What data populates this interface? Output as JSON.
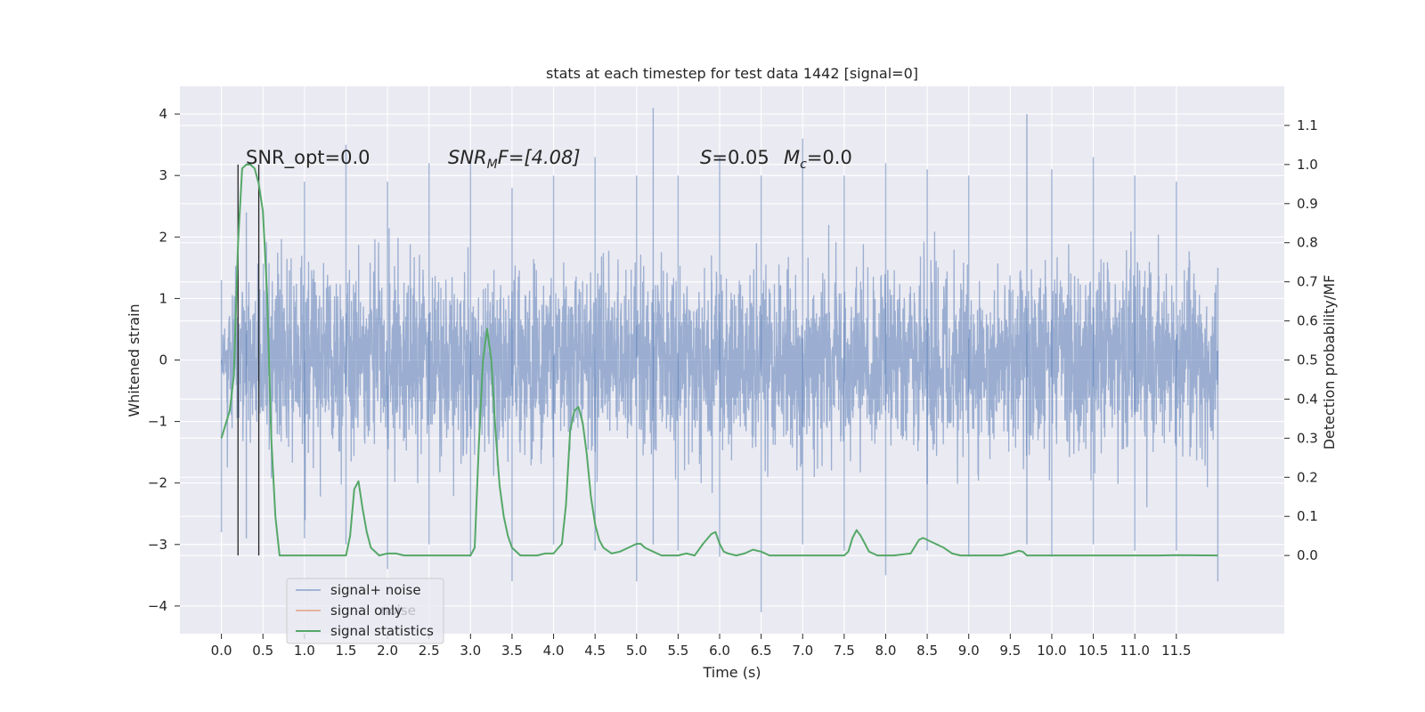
{
  "chart_data": {
    "type": "line",
    "title": "stats at each timestep for test data 1442 [signal=0]",
    "xlabel": "Time (s)",
    "ylabel": "Whitened strain",
    "y2label": "Detection probability/MF",
    "xlim": [
      -0.5,
      12.8
    ],
    "ylim": [
      -4.45,
      4.45
    ],
    "y2lim": [
      -0.2,
      1.2
    ],
    "xticks": [
      0.0,
      0.5,
      1.0,
      1.5,
      2.0,
      2.5,
      3.0,
      3.5,
      4.0,
      4.5,
      5.0,
      5.5,
      6.0,
      6.5,
      7.0,
      7.5,
      8.0,
      8.5,
      9.0,
      9.5,
      10.0,
      10.5,
      11.0,
      11.5
    ],
    "xtick_labels": [
      "0.0",
      "0.5",
      "1.0",
      "1.5",
      "2.0",
      "2.5",
      "3.0",
      "3.5",
      "4.0",
      "4.5",
      "5.0",
      "5.5",
      "6.0",
      "6.5",
      "7.0",
      "7.5",
      "8.0",
      "8.5",
      "9.0",
      "9.5",
      "10.0",
      "10.5",
      "11.0",
      "11.5"
    ],
    "yticks": [
      -4,
      -3,
      -2,
      -1,
      0,
      1,
      2,
      3,
      4
    ],
    "ytick_labels": [
      "−4",
      "−3",
      "−2",
      "−1",
      "0",
      "1",
      "2",
      "3",
      "4"
    ],
    "y2ticks": [
      0.0,
      0.1,
      0.2,
      0.3,
      0.4,
      0.5,
      0.6,
      0.7,
      0.8,
      0.9,
      1.0,
      1.1
    ],
    "y2tick_labels": [
      "0.0",
      "0.1",
      "0.2",
      "0.3",
      "0.4",
      "0.5",
      "0.6",
      "0.7",
      "0.8",
      "0.9",
      "1.0",
      "1.1"
    ],
    "grid": true,
    "legend_placement": "lower-left",
    "colors": {
      "background": "#eaeaf2",
      "grid": "#ffffff",
      "noise": "#4c72b0",
      "signal_only": "#dd8452",
      "statistics": "#55a868",
      "markers": "#262626"
    },
    "series": [
      {
        "name": "signal+ noise",
        "axis": "left",
        "duration": 12.0,
        "envelope": [
          {
            "x": 0.0,
            "upper": 1.3,
            "lower": -2.8
          },
          {
            "x": 0.3,
            "upper": 2.4,
            "lower": -2.9
          },
          {
            "x": 1.0,
            "upper": 2.9,
            "lower": -2.9
          },
          {
            "x": 1.5,
            "upper": 3.5,
            "lower": -3.0
          },
          {
            "x": 2.0,
            "upper": 2.9,
            "lower": -3.4
          },
          {
            "x": 2.5,
            "upper": 3.2,
            "lower": -3.0
          },
          {
            "x": 3.0,
            "upper": 3.3,
            "lower": -3.2
          },
          {
            "x": 3.5,
            "upper": 2.8,
            "lower": -3.6
          },
          {
            "x": 4.0,
            "upper": 3.0,
            "lower": -3.0
          },
          {
            "x": 4.5,
            "upper": 3.3,
            "lower": -3.1
          },
          {
            "x": 5.0,
            "upper": 3.0,
            "lower": -3.6
          },
          {
            "x": 5.2,
            "upper": 4.1,
            "lower": -3.0
          },
          {
            "x": 5.5,
            "upper": 3.0,
            "lower": -3.1
          },
          {
            "x": 6.0,
            "upper": 3.3,
            "lower": -3.2
          },
          {
            "x": 6.5,
            "upper": 3.0,
            "lower": -4.1
          },
          {
            "x": 7.0,
            "upper": 3.6,
            "lower": -3.0
          },
          {
            "x": 7.5,
            "upper": 3.0,
            "lower": -3.1
          },
          {
            "x": 8.0,
            "upper": 3.2,
            "lower": -3.5
          },
          {
            "x": 8.5,
            "upper": 3.1,
            "lower": -3.1
          },
          {
            "x": 9.0,
            "upper": 3.0,
            "lower": -3.2
          },
          {
            "x": 9.7,
            "upper": 4.0,
            "lower": -3.0
          },
          {
            "x": 10.0,
            "upper": 3.1,
            "lower": -3.2
          },
          {
            "x": 10.5,
            "upper": 3.3,
            "lower": -3.0
          },
          {
            "x": 11.0,
            "upper": 3.0,
            "lower": -3.1
          },
          {
            "x": 11.5,
            "upper": 2.9,
            "lower": -3.1
          },
          {
            "x": 12.0,
            "upper": 1.5,
            "lower": -3.6
          }
        ]
      },
      {
        "name": "signal only",
        "axis": "left",
        "points": []
      },
      {
        "name": "signal statistics",
        "axis": "right",
        "points": [
          [
            0.0,
            0.3
          ],
          [
            0.1,
            0.37
          ],
          [
            0.15,
            0.46
          ],
          [
            0.2,
            0.8
          ],
          [
            0.25,
            0.99
          ],
          [
            0.3,
            1.0
          ],
          [
            0.35,
            1.0
          ],
          [
            0.4,
            0.99
          ],
          [
            0.45,
            0.95
          ],
          [
            0.5,
            0.88
          ],
          [
            0.55,
            0.67
          ],
          [
            0.6,
            0.3
          ],
          [
            0.65,
            0.1
          ],
          [
            0.7,
            0.0
          ],
          [
            0.8,
            0.0
          ],
          [
            1.0,
            0.0
          ],
          [
            1.2,
            0.0
          ],
          [
            1.35,
            0.0
          ],
          [
            1.5,
            0.0
          ],
          [
            1.55,
            0.05
          ],
          [
            1.6,
            0.17
          ],
          [
            1.65,
            0.19
          ],
          [
            1.7,
            0.12
          ],
          [
            1.75,
            0.06
          ],
          [
            1.8,
            0.02
          ],
          [
            1.9,
            0.0
          ],
          [
            2.0,
            0.005
          ],
          [
            2.1,
            0.005
          ],
          [
            2.2,
            0.0
          ],
          [
            2.5,
            0.0
          ],
          [
            2.8,
            0.0
          ],
          [
            3.0,
            0.0
          ],
          [
            3.05,
            0.02
          ],
          [
            3.1,
            0.28
          ],
          [
            3.15,
            0.5
          ],
          [
            3.2,
            0.58
          ],
          [
            3.25,
            0.5
          ],
          [
            3.3,
            0.32
          ],
          [
            3.35,
            0.18
          ],
          [
            3.4,
            0.1
          ],
          [
            3.45,
            0.05
          ],
          [
            3.5,
            0.02
          ],
          [
            3.6,
            0.0
          ],
          [
            3.8,
            0.0
          ],
          [
            3.9,
            0.005
          ],
          [
            4.0,
            0.005
          ],
          [
            4.1,
            0.03
          ],
          [
            4.15,
            0.13
          ],
          [
            4.2,
            0.32
          ],
          [
            4.25,
            0.37
          ],
          [
            4.3,
            0.38
          ],
          [
            4.35,
            0.34
          ],
          [
            4.4,
            0.26
          ],
          [
            4.45,
            0.15
          ],
          [
            4.5,
            0.08
          ],
          [
            4.55,
            0.04
          ],
          [
            4.6,
            0.02
          ],
          [
            4.7,
            0.005
          ],
          [
            4.8,
            0.01
          ],
          [
            4.9,
            0.02
          ],
          [
            5.0,
            0.03
          ],
          [
            5.05,
            0.03
          ],
          [
            5.1,
            0.02
          ],
          [
            5.2,
            0.01
          ],
          [
            5.3,
            0.0
          ],
          [
            5.5,
            0.0
          ],
          [
            5.6,
            0.005
          ],
          [
            5.7,
            0.0
          ],
          [
            5.8,
            0.03
          ],
          [
            5.9,
            0.055
          ],
          [
            5.95,
            0.06
          ],
          [
            6.0,
            0.03
          ],
          [
            6.05,
            0.01
          ],
          [
            6.1,
            0.005
          ],
          [
            6.2,
            0.0
          ],
          [
            6.3,
            0.005
          ],
          [
            6.4,
            0.015
          ],
          [
            6.5,
            0.01
          ],
          [
            6.6,
            0.0
          ],
          [
            6.8,
            0.0
          ],
          [
            7.0,
            0.0
          ],
          [
            7.2,
            0.0
          ],
          [
            7.5,
            0.0
          ],
          [
            7.55,
            0.01
          ],
          [
            7.6,
            0.045
          ],
          [
            7.65,
            0.065
          ],
          [
            7.7,
            0.05
          ],
          [
            7.75,
            0.03
          ],
          [
            7.8,
            0.01
          ],
          [
            7.9,
            0.0
          ],
          [
            8.1,
            0.0
          ],
          [
            8.3,
            0.005
          ],
          [
            8.4,
            0.04
          ],
          [
            8.45,
            0.045
          ],
          [
            8.5,
            0.04
          ],
          [
            8.6,
            0.03
          ],
          [
            8.7,
            0.02
          ],
          [
            8.8,
            0.005
          ],
          [
            8.9,
            0.0
          ],
          [
            9.1,
            0.0
          ],
          [
            9.3,
            0.0
          ],
          [
            9.4,
            0.0
          ],
          [
            9.5,
            0.005
          ],
          [
            9.6,
            0.012
          ],
          [
            9.65,
            0.01
          ],
          [
            9.7,
            0.0
          ],
          [
            9.9,
            0.0
          ],
          [
            10.5,
            0.0
          ],
          [
            11.0,
            0.0
          ],
          [
            11.3,
            0.0
          ],
          [
            11.5,
            0.001
          ],
          [
            12.0,
            0.0
          ]
        ]
      }
    ],
    "vertical_markers": [
      0.2,
      0.45
    ],
    "annotations": {
      "snr_opt": "SNR_opt=0.0",
      "snr_mf_main": "SNR",
      "snr_mf_sub": "M",
      "snr_mf_rest": "F=[4.08]",
      "s_var": "S",
      "s_rest": "=0.05",
      "mc_main": "M",
      "mc_sub": "c",
      "mc_rest": "=0.0",
      "ghost_legend_text": "noise"
    }
  }
}
